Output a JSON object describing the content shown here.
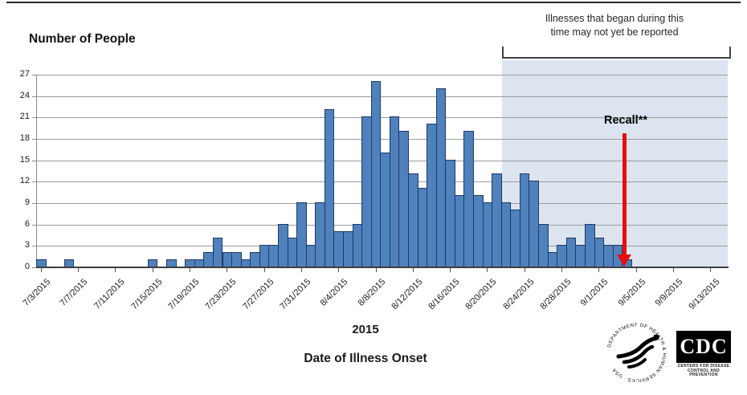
{
  "header": {
    "y_axis_title": "Number of People",
    "annotation_line1": "Illnesses that began during this",
    "annotation_line2": "time may not yet be reported"
  },
  "recall": {
    "label": "Recall**"
  },
  "footer": {
    "year_label": "2015",
    "x_axis_title": "Date of Illness Onset"
  },
  "logos": {
    "hhs_seal_text": "DEPARTMENT OF HEALTH & HUMAN SERVICES · USA",
    "cdc_text": "CDC",
    "cdc_caption_line1": "CENTERS FOR DISEASE",
    "cdc_caption_line2": "CONTROL AND PREVENTION"
  },
  "chart_data": {
    "type": "bar",
    "title": "",
    "ylabel": "Number of People",
    "xlabel": "Date of Illness Onset",
    "ylim": [
      0,
      27
    ],
    "ytick_step": 3,
    "grid": true,
    "bar_color": "#4f81bd",
    "bar_border_color": "#1f3a60",
    "categories": [
      "7/3/2015",
      "7/4/2015",
      "7/5/2015",
      "7/6/2015",
      "7/7/2015",
      "7/8/2015",
      "7/9/2015",
      "7/10/2015",
      "7/11/2015",
      "7/12/2015",
      "7/13/2015",
      "7/14/2015",
      "7/15/2015",
      "7/16/2015",
      "7/17/2015",
      "7/18/2015",
      "7/19/2015",
      "7/20/2015",
      "7/21/2015",
      "7/22/2015",
      "7/23/2015",
      "7/24/2015",
      "7/25/2015",
      "7/26/2015",
      "7/27/2015",
      "7/28/2015",
      "7/29/2015",
      "7/30/2015",
      "7/31/2015",
      "8/1/2015",
      "8/2/2015",
      "8/3/2015",
      "8/4/2015",
      "8/5/2015",
      "8/6/2015",
      "8/7/2015",
      "8/8/2015",
      "8/9/2015",
      "8/10/2015",
      "8/11/2015",
      "8/12/2015",
      "8/13/2015",
      "8/14/2015",
      "8/15/2015",
      "8/16/2015",
      "8/17/2015",
      "8/18/2015",
      "8/19/2015",
      "8/20/2015",
      "8/21/2015",
      "8/22/2015",
      "8/23/2015",
      "8/24/2015",
      "8/25/2015",
      "8/26/2015",
      "8/27/2015",
      "8/28/2015",
      "8/29/2015",
      "8/30/2015",
      "8/31/2015",
      "9/1/2015",
      "9/2/2015",
      "9/3/2015",
      "9/4/2015",
      "9/5/2015",
      "9/6/2015",
      "9/7/2015",
      "9/8/2015",
      "9/9/2015",
      "9/10/2015",
      "9/11/2015",
      "9/12/2015",
      "9/13/2015"
    ],
    "values": [
      1,
      0,
      0,
      1,
      0,
      0,
      0,
      0,
      0,
      0,
      0,
      0,
      1,
      0,
      1,
      0,
      1,
      1,
      2,
      4,
      2,
      2,
      1,
      2,
      3,
      3,
      6,
      4,
      9,
      3,
      9,
      22,
      5,
      5,
      6,
      21,
      26,
      16,
      21,
      19,
      13,
      11,
      20,
      25,
      15,
      10,
      19,
      10,
      9,
      13,
      9,
      8,
      13,
      12,
      6,
      2,
      3,
      4,
      3,
      6,
      4,
      3,
      3,
      1,
      0,
      0,
      0,
      0,
      0,
      0,
      0,
      0,
      0
    ],
    "x_tick_labels": [
      "7/3/2015",
      "7/7/2015",
      "7/11/2015",
      "7/15/2015",
      "7/19/2015",
      "7/23/2015",
      "7/27/2015",
      "7/31/2015",
      "8/4/2015",
      "8/8/2015",
      "8/12/2015",
      "8/16/2015",
      "8/20/2015",
      "8/24/2015",
      "8/28/2015",
      "9/1/2015",
      "9/5/2015",
      "9/9/2015",
      "9/13/2015"
    ],
    "x_label_interval": 4,
    "shaded_region": {
      "start_date": "8/22/2015",
      "end_date": "9/13/2015",
      "color": "#dce4f0",
      "note": "Illnesses that began during this time may not yet be reported"
    },
    "recall_annotation": {
      "label": "Recall**",
      "date": "9/4/2015",
      "arrow_color": "#e80c0c"
    }
  }
}
